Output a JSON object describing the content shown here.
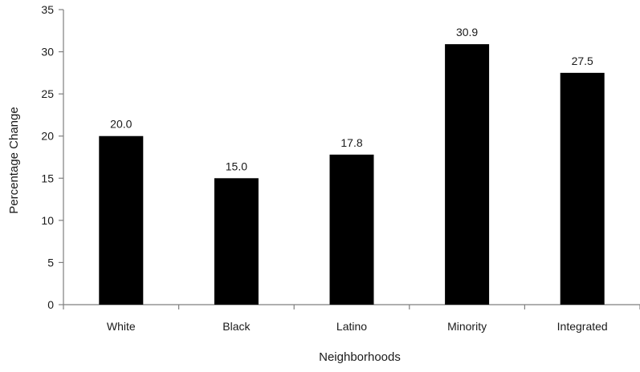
{
  "chart_data": {
    "type": "bar",
    "categories": [
      "White",
      "Black",
      "Latino",
      "Minority",
      "Integrated"
    ],
    "values": [
      20.0,
      15.0,
      17.8,
      30.9,
      27.5
    ],
    "data_labels": [
      "20.0",
      "15.0",
      "17.8",
      "30.9",
      "27.5"
    ],
    "title": "",
    "xlabel": "Neighborhoods",
    "ylabel": "Percentage Change",
    "ylim": [
      0,
      35
    ],
    "yticks": [
      0,
      5,
      10,
      15,
      20,
      25,
      30,
      35
    ],
    "grid": false,
    "legend": "none",
    "bar_color": "#000000",
    "axis_color": "#7f7f7f"
  }
}
